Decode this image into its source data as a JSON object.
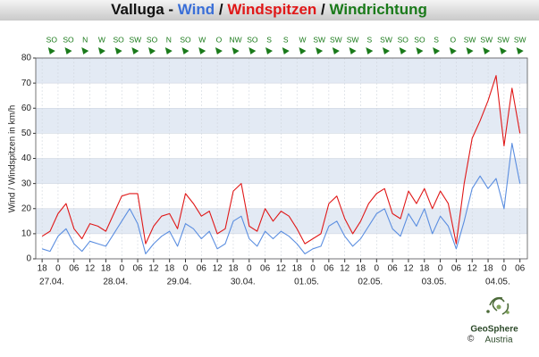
{
  "chart_data": {
    "type": "line",
    "title_parts": [
      {
        "text": "Valluga - ",
        "color": "#111111"
      },
      {
        "text": "Wind",
        "color": "#3a6fd8"
      },
      {
        "text": " / ",
        "color": "#111111"
      },
      {
        "text": "Windspitzen",
        "color": "#e01818"
      },
      {
        "text": " / ",
        "color": "#111111"
      },
      {
        "text": "Windrichtung",
        "color": "#1a7a1a"
      }
    ],
    "y_label": "Wind / Windspitzen in km/h",
    "x": [
      -6,
      -3,
      0,
      3,
      6,
      9,
      12,
      15,
      18,
      21,
      24,
      27,
      30,
      33,
      36,
      39,
      42,
      45,
      48,
      51,
      54,
      57,
      60,
      63,
      66,
      69,
      72,
      75,
      78,
      81,
      84,
      87,
      90,
      93,
      96,
      99,
      102,
      105,
      108,
      111,
      114,
      117,
      120,
      123,
      126,
      129,
      132,
      135,
      138,
      141,
      144,
      147,
      150,
      153,
      156,
      159,
      162,
      165,
      168,
      171,
      174
    ],
    "series": [
      {
        "name": "Wind",
        "color": "#5b8ee0",
        "values": [
          4,
          3,
          9,
          12,
          6,
          3,
          7,
          6,
          5,
          10,
          15,
          20,
          14,
          2,
          6,
          9,
          11,
          5,
          14,
          12,
          8,
          11,
          4,
          6,
          15,
          17,
          8,
          5,
          11,
          8,
          11,
          9,
          6,
          2,
          4,
          5,
          13,
          15,
          9,
          5,
          8,
          13,
          18,
          20,
          12,
          9,
          18,
          13,
          20,
          10,
          17,
          13,
          4,
          15,
          28,
          33,
          28,
          32,
          20,
          46,
          30
        ]
      },
      {
        "name": "Windspitzen",
        "color": "#e01818",
        "values": [
          9,
          11,
          18,
          22,
          12,
          8,
          14,
          13,
          11,
          18,
          25,
          26,
          26,
          6,
          13,
          17,
          18,
          12,
          26,
          22,
          17,
          19,
          10,
          12,
          27,
          30,
          13,
          11,
          20,
          15,
          19,
          17,
          12,
          6,
          8,
          10,
          22,
          25,
          16,
          10,
          15,
          22,
          26,
          28,
          18,
          16,
          27,
          22,
          28,
          20,
          27,
          22,
          6,
          30,
          48,
          55,
          63,
          73,
          45,
          68,
          50
        ]
      }
    ],
    "direction_color": "#1a7a1a",
    "directions": [
      {
        "x": -2.4,
        "label": "SO"
      },
      {
        "x": 3.9,
        "label": "SO"
      },
      {
        "x": 10.2,
        "label": "N"
      },
      {
        "x": 16.5,
        "label": "W"
      },
      {
        "x": 22.8,
        "label": "SO"
      },
      {
        "x": 29.1,
        "label": "SW"
      },
      {
        "x": 35.4,
        "label": "SO"
      },
      {
        "x": 41.7,
        "label": "N"
      },
      {
        "x": 48,
        "label": "SO"
      },
      {
        "x": 54.3,
        "label": "W"
      },
      {
        "x": 60.6,
        "label": "O"
      },
      {
        "x": 66.9,
        "label": "NW"
      },
      {
        "x": 73.2,
        "label": "SO"
      },
      {
        "x": 79.5,
        "label": "S"
      },
      {
        "x": 85.8,
        "label": "S"
      },
      {
        "x": 92.1,
        "label": "W"
      },
      {
        "x": 98.4,
        "label": "SW"
      },
      {
        "x": 104.7,
        "label": "SW"
      },
      {
        "x": 111,
        "label": "SW"
      },
      {
        "x": 117.3,
        "label": "S"
      },
      {
        "x": 123.6,
        "label": "SW"
      },
      {
        "x": 129.9,
        "label": "SO"
      },
      {
        "x": 136.2,
        "label": "SO"
      },
      {
        "x": 142.5,
        "label": "S"
      },
      {
        "x": 148.8,
        "label": "O"
      },
      {
        "x": 155.1,
        "label": "SW"
      },
      {
        "x": 161.4,
        "label": "SW"
      },
      {
        "x": 167.7,
        "label": "SW"
      },
      {
        "x": 174,
        "label": "SW"
      }
    ],
    "xlim": [
      -8.4,
      176.8
    ],
    "xticks": [
      {
        "value": -6,
        "label": "18"
      },
      0,
      {
        "value": 6,
        "label": "06"
      },
      {
        "value": 12,
        "label": "12"
      },
      {
        "value": 18,
        "label": "18"
      },
      {
        "value": 24,
        "label": "0"
      },
      {
        "value": 30,
        "label": "06"
      },
      {
        "value": 36,
        "label": "12"
      },
      {
        "value": 42,
        "label": "18"
      },
      {
        "value": 48,
        "label": "0"
      },
      {
        "value": 54,
        "label": "06"
      },
      {
        "value": 60,
        "label": "12"
      },
      {
        "value": 66,
        "label": "18"
      },
      {
        "value": 72,
        "label": "0"
      },
      {
        "value": 78,
        "label": "06"
      },
      {
        "value": 84,
        "label": "12"
      },
      {
        "value": 90,
        "label": "18"
      },
      {
        "value": 96,
        "label": "0"
      },
      {
        "value": 102,
        "label": "06"
      },
      {
        "value": 108,
        "label": "12"
      },
      {
        "value": 114,
        "label": "18"
      },
      {
        "value": 120,
        "label": "0"
      },
      {
        "value": 126,
        "label": "06"
      },
      {
        "value": 132,
        "label": "12"
      },
      {
        "value": 138,
        "label": "18"
      },
      {
        "value": 144,
        "label": "0"
      },
      {
        "value": 150,
        "label": "06"
      },
      {
        "value": 156,
        "label": "12"
      },
      {
        "value": 162,
        "label": "18"
      },
      {
        "value": 168,
        "label": "0"
      },
      {
        "value": 174,
        "label": "06"
      }
    ],
    "date_labels": [
      {
        "value": 0,
        "label": "27.04."
      },
      {
        "value": 24,
        "label": "28.04."
      },
      {
        "value": 48,
        "label": "29.04."
      },
      {
        "value": 72,
        "label": "30.04."
      },
      {
        "value": 96,
        "label": "01.05."
      },
      {
        "value": 120,
        "label": "02.05."
      },
      {
        "value": 144,
        "label": "03.05."
      },
      {
        "value": 168,
        "label": "04.05."
      }
    ],
    "ylim": [
      0,
      80
    ],
    "yticks": [
      0,
      10,
      20,
      30,
      40,
      50,
      60,
      70,
      80
    ],
    "grid": true,
    "band_colors": [
      "#ffffff",
      "#e3eaf4"
    ],
    "logo": {
      "copyright": "©",
      "name": "GeoSphere",
      "country": "Austria"
    }
  }
}
